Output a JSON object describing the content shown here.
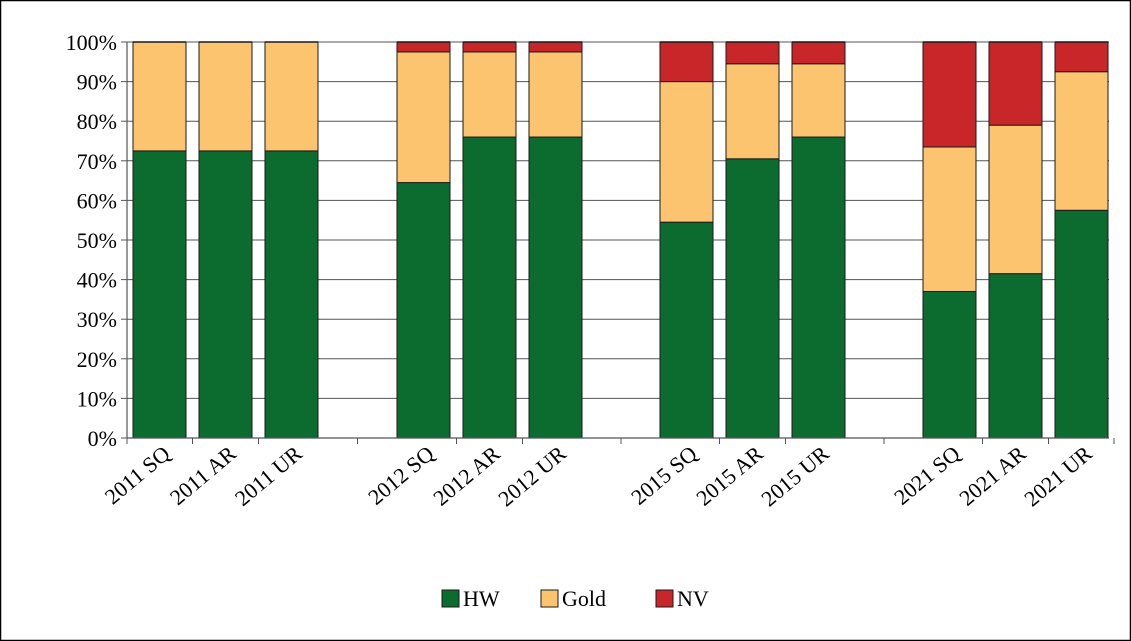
{
  "chart_data": {
    "type": "bar",
    "stacked": true,
    "title": "",
    "xlabel": "",
    "ylabel": "",
    "ylim": [
      0,
      100
    ],
    "yticks": [
      "0%",
      "10%",
      "20%",
      "30%",
      "40%",
      "50%",
      "60%",
      "70%",
      "80%",
      "90%",
      "100%"
    ],
    "grid": true,
    "legend_position": "bottom",
    "categories": [
      "2011 SQ",
      "2011 AR",
      "2011 UR",
      "2012 SQ",
      "2012 AR",
      "2012 UR",
      "2015 SQ",
      "2015 AR",
      "2015 UR",
      "2021 SQ",
      "2021 AR",
      "2021 UR"
    ],
    "groups": [
      [
        0,
        1,
        2
      ],
      [
        3,
        4,
        5
      ],
      [
        6,
        7,
        8
      ],
      [
        9,
        10,
        11
      ]
    ],
    "series": [
      {
        "name": "HW",
        "color": "#0c6b2e",
        "values": [
          72.5,
          72.5,
          72.5,
          64.5,
          76,
          76,
          54.5,
          70.5,
          76,
          37,
          41.5,
          57.5
        ]
      },
      {
        "name": "Gold",
        "color": "#fcc46e",
        "values": [
          27.5,
          27.5,
          27.5,
          33,
          21.5,
          21.5,
          35.5,
          24,
          18.5,
          36.5,
          37.5,
          35
        ]
      },
      {
        "name": "NV",
        "color": "#c9262a",
        "values": [
          0,
          0,
          0,
          2.5,
          2.5,
          2.5,
          10,
          5.5,
          5.5,
          26.5,
          21,
          7.5
        ]
      }
    ]
  }
}
